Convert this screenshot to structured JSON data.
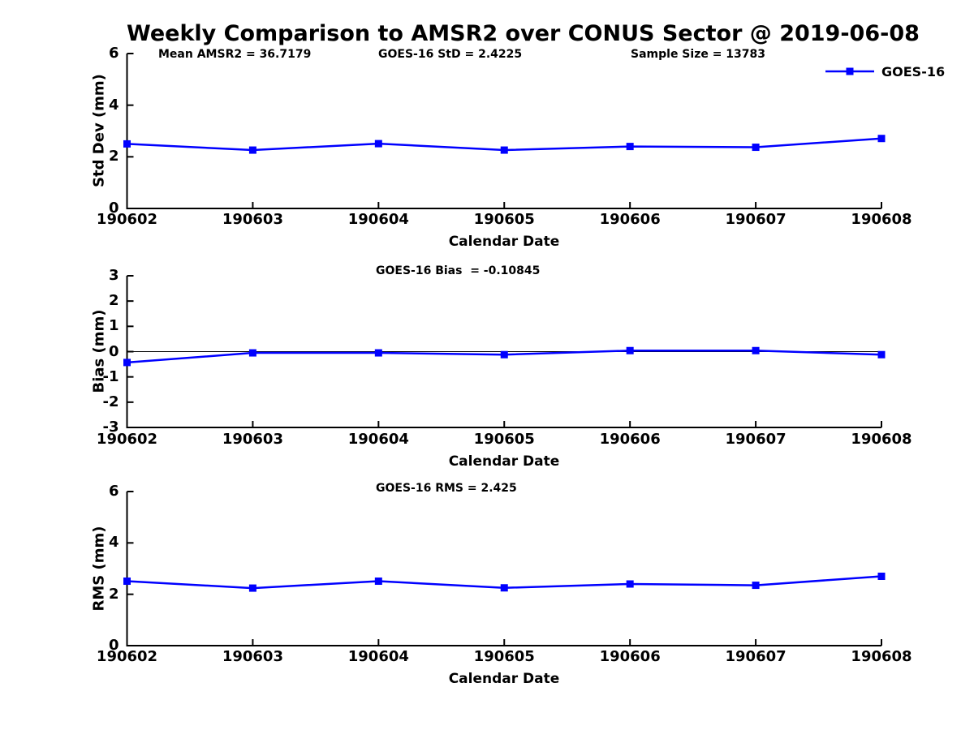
{
  "title": "Weekly Comparison to AMSR2 over CONUS Sector @ 2019-06-08",
  "legend": {
    "label": "GOES-16",
    "position": "top-right"
  },
  "colors": {
    "series": "#0000FF",
    "axis": "#000000",
    "zero_line": "#000000",
    "background": "#FFFFFF"
  },
  "categories": [
    "190602",
    "190603",
    "190604",
    "190605",
    "190606",
    "190607",
    "190608"
  ],
  "chart_data": [
    {
      "type": "line",
      "title": "",
      "annotations": [
        "Mean AMSR2 = 36.7179",
        "GOES-16 StD = 2.4225",
        "Sample Size = 13783"
      ],
      "xlabel": "Calendar Date",
      "ylabel": "Std Dev (mm)",
      "ylim": [
        0,
        6
      ],
      "yticks": [
        0,
        2,
        4,
        6
      ],
      "grid": false,
      "marker": "square",
      "series": [
        {
          "name": "GOES-16",
          "color": "#0000FF",
          "values": [
            2.5,
            2.26,
            2.51,
            2.26,
            2.4,
            2.37,
            2.71
          ]
        }
      ]
    },
    {
      "type": "line",
      "title": "GOES-16 Bias  = -0.10845",
      "annotations": [],
      "xlabel": "Calendar Date",
      "ylabel": "Bias (mm)",
      "ylim": [
        -3,
        3
      ],
      "yticks": [
        3,
        2,
        1,
        0,
        -1,
        -2,
        -3
      ],
      "zero_line": true,
      "grid": false,
      "marker": "square",
      "series": [
        {
          "name": "GOES-16",
          "color": "#0000FF",
          "values": [
            -0.43,
            -0.05,
            -0.05,
            -0.12,
            0.04,
            0.04,
            -0.12
          ]
        }
      ]
    },
    {
      "type": "line",
      "title": "GOES-16 RMS = 2.425",
      "annotations": [],
      "xlabel": "Calendar Date",
      "ylabel": "RMS (mm)",
      "ylim": [
        0,
        6
      ],
      "yticks": [
        0,
        2,
        4,
        6
      ],
      "grid": false,
      "marker": "square",
      "series": [
        {
          "name": "GOES-16",
          "color": "#0000FF",
          "values": [
            2.51,
            2.24,
            2.51,
            2.25,
            2.4,
            2.35,
            2.7
          ]
        }
      ]
    }
  ]
}
